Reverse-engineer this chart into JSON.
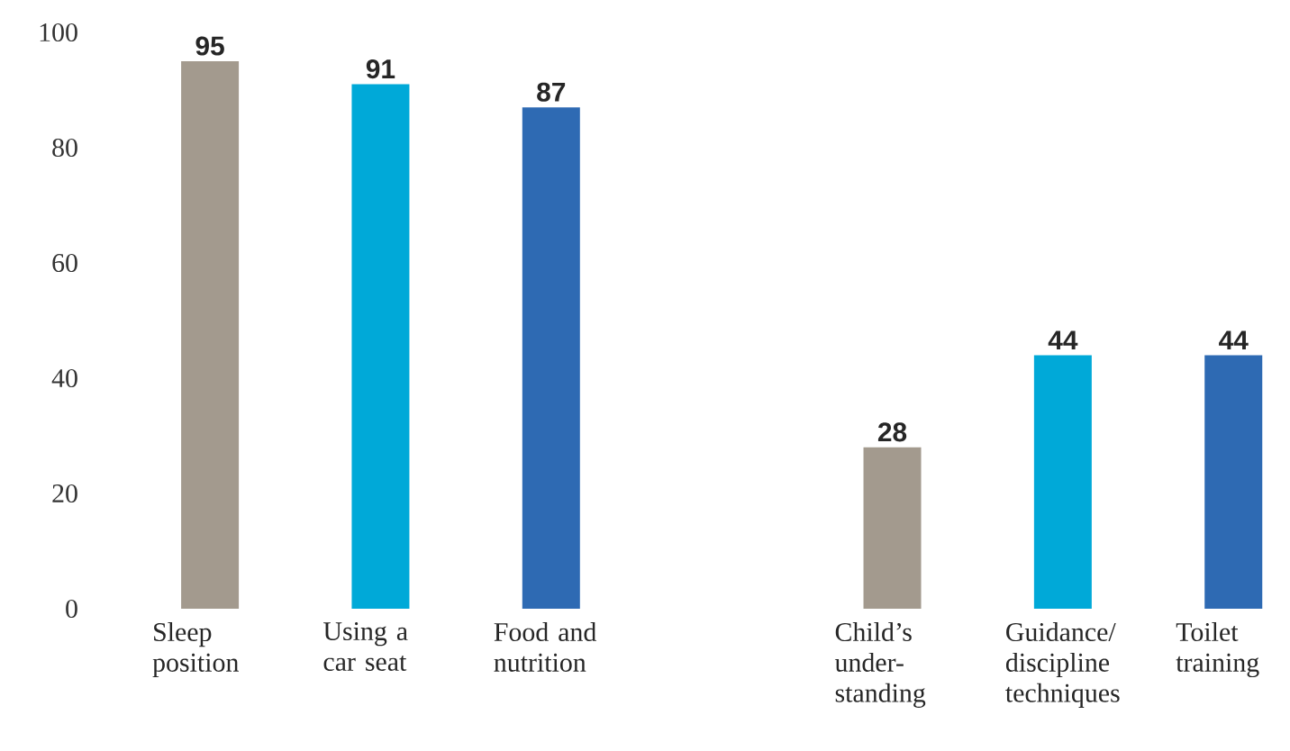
{
  "chart_data": {
    "type": "bar",
    "categories": [
      "Sleep position",
      "Using a car seat",
      "Food and nutrition",
      null,
      "Child’s under-standing",
      "Guidance/discipline techniques",
      "Toilet training"
    ],
    "values": [
      95,
      91,
      87,
      null,
      28,
      44,
      44
    ],
    "colors": [
      "#a39a8e",
      "#00a9d8",
      "#2e6ab3",
      "#ffffff",
      "#a39a8e",
      "#00a9d8",
      "#2e6ab3"
    ],
    "ylim": [
      0,
      100
    ],
    "yticks": [
      0,
      20,
      40,
      60,
      80,
      100
    ],
    "data_labels": true,
    "grid": false,
    "legend": false
  }
}
